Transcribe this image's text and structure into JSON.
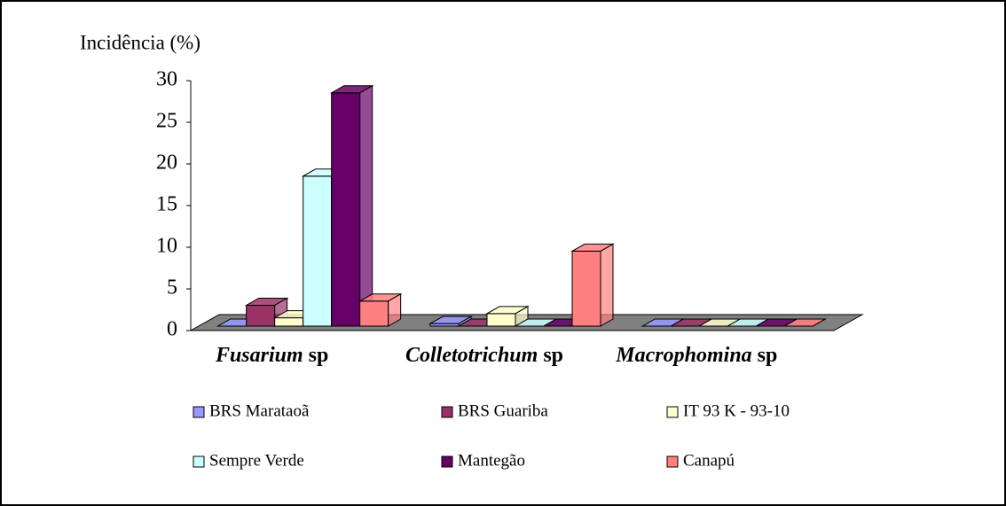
{
  "chart_data": {
    "type": "bar3d",
    "y_label": "Incidência (%)",
    "categories": [
      "Fusarium sp",
      "Colletotrichum sp",
      "Macrophomina sp"
    ],
    "series": [
      {
        "name": "BRS Marataoã",
        "color": "#9999ff",
        "values": [
          0,
          0.3,
          0
        ]
      },
      {
        "name": "BRS Guariba",
        "color": "#993366",
        "values": [
          2.5,
          0,
          0
        ]
      },
      {
        "name": "IT 93 K - 93-10",
        "color": "#ffffcc",
        "values": [
          1,
          1.5,
          0
        ]
      },
      {
        "name": "Sempre Verde",
        "color": "#ccffff",
        "values": [
          18,
          0,
          0
        ]
      },
      {
        "name": "Mantegão",
        "color": "#660066",
        "values": [
          28,
          0,
          0
        ]
      },
      {
        "name": "Canapú",
        "color": "#ff8080",
        "values": [
          3,
          9,
          0
        ]
      }
    ],
    "ylim": [
      0,
      30
    ],
    "yticks": [
      0,
      5,
      10,
      15,
      20,
      25,
      30
    ]
  }
}
